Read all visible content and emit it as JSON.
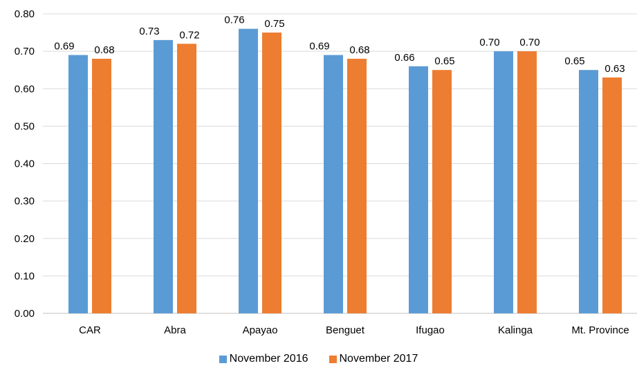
{
  "chart_data": {
    "type": "bar",
    "categories": [
      "CAR",
      "Abra",
      "Apayao",
      "Benguet",
      "Ifugao",
      "Kalinga",
      "Mt. Province"
    ],
    "series": [
      {
        "name": "November 2016",
        "color": "#5B9BD5",
        "values": [
          0.69,
          0.73,
          0.76,
          0.69,
          0.66,
          0.7,
          0.65
        ],
        "labels": [
          "0.69",
          "0.73",
          "0.76",
          "0.69",
          "0.66",
          "0.70",
          "0.65"
        ]
      },
      {
        "name": "November 2017",
        "color": "#ED7D31",
        "values": [
          0.68,
          0.72,
          0.75,
          0.68,
          0.65,
          0.7,
          0.63
        ],
        "labels": [
          "0.68",
          "0.72",
          "0.75",
          "0.68",
          "0.65",
          "0.70",
          "0.63"
        ]
      }
    ],
    "ylim": [
      0,
      0.8
    ],
    "yticks": [
      "0.00",
      "0.10",
      "0.20",
      "0.30",
      "0.40",
      "0.50",
      "0.60",
      "0.70",
      "0.80"
    ],
    "grid": true,
    "legend_position": "bottom",
    "title": "",
    "xlabel": "",
    "ylabel": ""
  }
}
